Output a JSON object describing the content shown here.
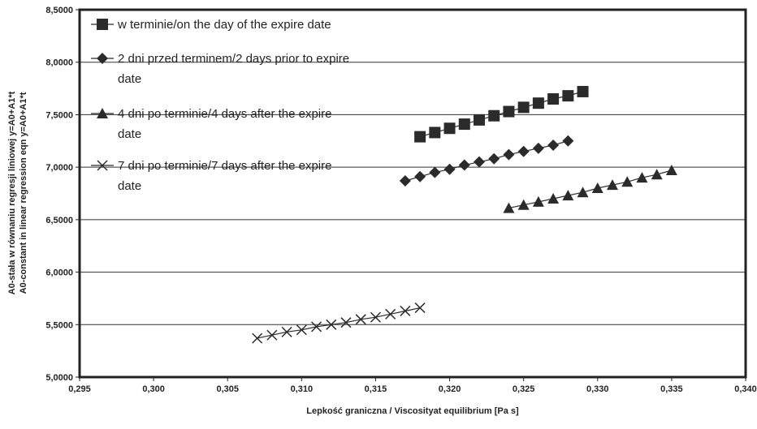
{
  "chart_data": {
    "type": "scatter",
    "xlabel": "Lepkość graniczna / Viscosityat equilibrium   [Pa s]",
    "ylabel_lines": [
      "A0-stała w równaniu regresji liniowej y=A0+A1*t",
      "A0-constant in linear regression eqn y=A0+A1*t"
    ],
    "xlim": [
      0.295,
      0.34
    ],
    "ylim": [
      5.0,
      8.5
    ],
    "x_ticks": [
      "0,295",
      "0,300",
      "0,305",
      "0,310",
      "0,315",
      "0,320",
      "0,325",
      "0,330",
      "0,335",
      "0,340"
    ],
    "y_ticks": [
      "5,0000",
      "5,5000",
      "6,0000",
      "6,5000",
      "7,0000",
      "7,5000",
      "8,0000",
      "8,5000"
    ],
    "grid": "horizontal",
    "legend_position": "top-left inside",
    "series": [
      {
        "name": "w terminie/on the day of the expire date",
        "legend_lines": [
          "w terminie/on the day of the expire date"
        ],
        "marker": "square",
        "x": [
          0.318,
          0.319,
          0.32,
          0.321,
          0.322,
          0.323,
          0.324,
          0.325,
          0.326,
          0.327,
          0.328,
          0.329
        ],
        "y": [
          7.29,
          7.33,
          7.37,
          7.41,
          7.45,
          7.49,
          7.53,
          7.57,
          7.61,
          7.65,
          7.68,
          7.72
        ]
      },
      {
        "name": "2 dni przed terminem/2 days prior to expire date",
        "legend_lines": [
          "2 dni przed terminem/2 days prior to expire",
          "date"
        ],
        "marker": "diamond",
        "x": [
          0.317,
          0.318,
          0.319,
          0.32,
          0.321,
          0.322,
          0.323,
          0.324,
          0.325,
          0.326,
          0.327,
          0.328
        ],
        "y": [
          6.87,
          6.91,
          6.95,
          6.98,
          7.02,
          7.05,
          7.08,
          7.12,
          7.15,
          7.18,
          7.21,
          7.25
        ]
      },
      {
        "name": "4 dni po terminie/4 days after the expire date",
        "legend_lines": [
          "4 dni po terminie/4 days after the expire",
          "date"
        ],
        "marker": "triangle",
        "x": [
          0.324,
          0.325,
          0.326,
          0.327,
          0.328,
          0.329,
          0.33,
          0.331,
          0.332,
          0.333,
          0.334,
          0.335
        ],
        "y": [
          6.61,
          6.64,
          6.67,
          6.7,
          6.73,
          6.76,
          6.8,
          6.83,
          6.86,
          6.9,
          6.93,
          6.97
        ]
      },
      {
        "name": "7 dni po terminie/7 days after the expire date",
        "legend_lines": [
          "7 dni po terminie/7 days after the expire",
          "date"
        ],
        "marker": "x",
        "x": [
          0.307,
          0.308,
          0.309,
          0.31,
          0.311,
          0.312,
          0.313,
          0.314,
          0.315,
          0.316,
          0.317,
          0.318
        ],
        "y": [
          5.37,
          5.4,
          5.43,
          5.45,
          5.48,
          5.5,
          5.52,
          5.55,
          5.57,
          5.6,
          5.63,
          5.66
        ]
      }
    ]
  }
}
